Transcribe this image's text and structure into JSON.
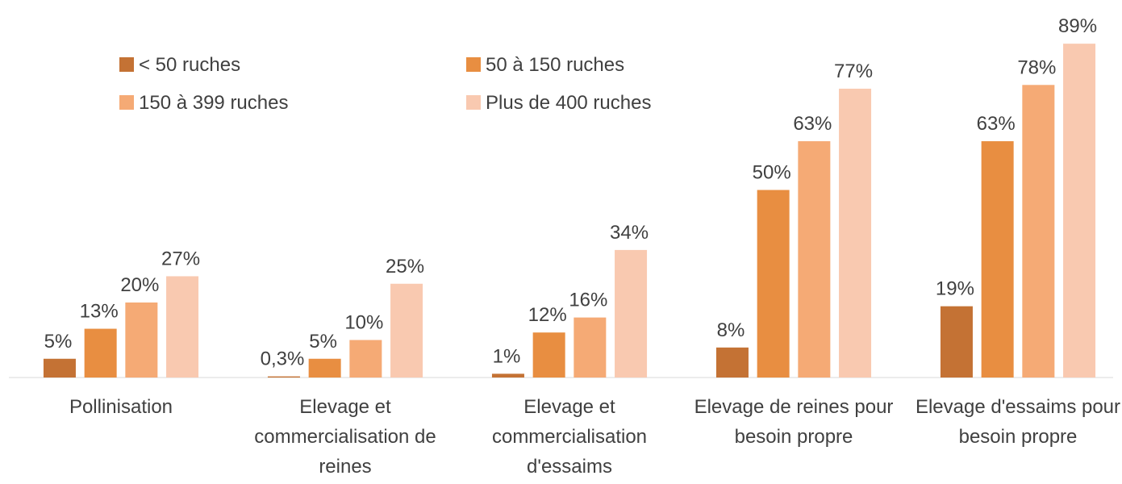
{
  "chart_data": {
    "type": "bar",
    "categories": [
      "Pollinisation",
      "Elevage et commercialisation de reines",
      "Elevage et commercialisation d'essaims",
      "Elevage de reines pour besoin propre",
      "Elevage d'essaims pour besoin propre"
    ],
    "series": [
      {
        "name": "< 50 ruches",
        "color": "#c47234",
        "values": [
          5,
          0.3,
          1,
          8,
          19
        ],
        "value_labels": [
          "5%",
          "0,3%",
          "1%",
          "8%",
          "19%"
        ]
      },
      {
        "name": "50 à 150 ruches",
        "color": "#e88e41",
        "values": [
          13,
          5,
          12,
          50,
          63
        ],
        "value_labels": [
          "13%",
          "5%",
          "12%",
          "50%",
          "63%"
        ]
      },
      {
        "name": "150 à 399 ruches",
        "color": "#f5aa75",
        "values": [
          20,
          10,
          16,
          63,
          78
        ],
        "value_labels": [
          "20%",
          "10%",
          "16%",
          "63%",
          "78%"
        ]
      },
      {
        "name": "Plus de 400 ruches",
        "color": "#f9c9b0",
        "values": [
          27,
          25,
          34,
          77,
          89
        ],
        "value_labels": [
          "27%",
          "25%",
          "34%",
          "77%",
          "89%"
        ]
      }
    ],
    "legend": "top-left"
  }
}
